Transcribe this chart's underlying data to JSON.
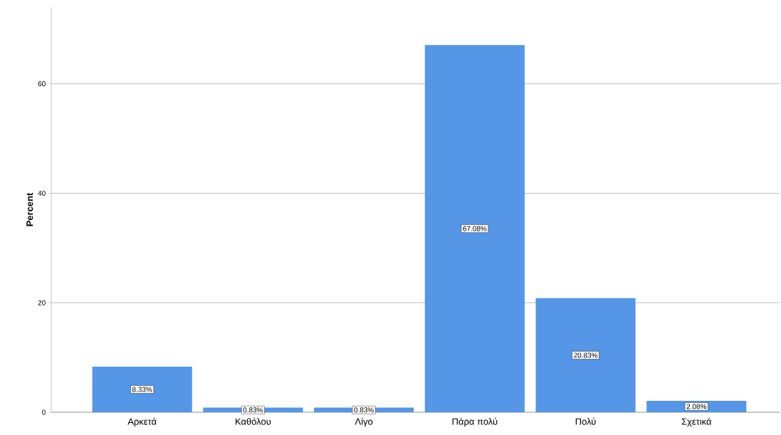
{
  "chart_data": {
    "type": "bar",
    "ylabel": "Percent",
    "categories": [
      "Αρκετά",
      "Καθόλου",
      "Λίγο",
      "Πάρα πολύ",
      "Πολύ",
      "Σχετικά"
    ],
    "values": [
      8.33,
      0.83,
      0.83,
      67.08,
      20.83,
      2.08
    ],
    "value_labels": [
      "8.33%",
      "0.83%",
      "0.83%",
      "67.08%",
      "20.83%",
      "2.08%"
    ],
    "color": "#5596e6",
    "ylim": [
      0,
      74
    ],
    "yticks": [
      0,
      20,
      40,
      60
    ],
    "grid": "y"
  }
}
